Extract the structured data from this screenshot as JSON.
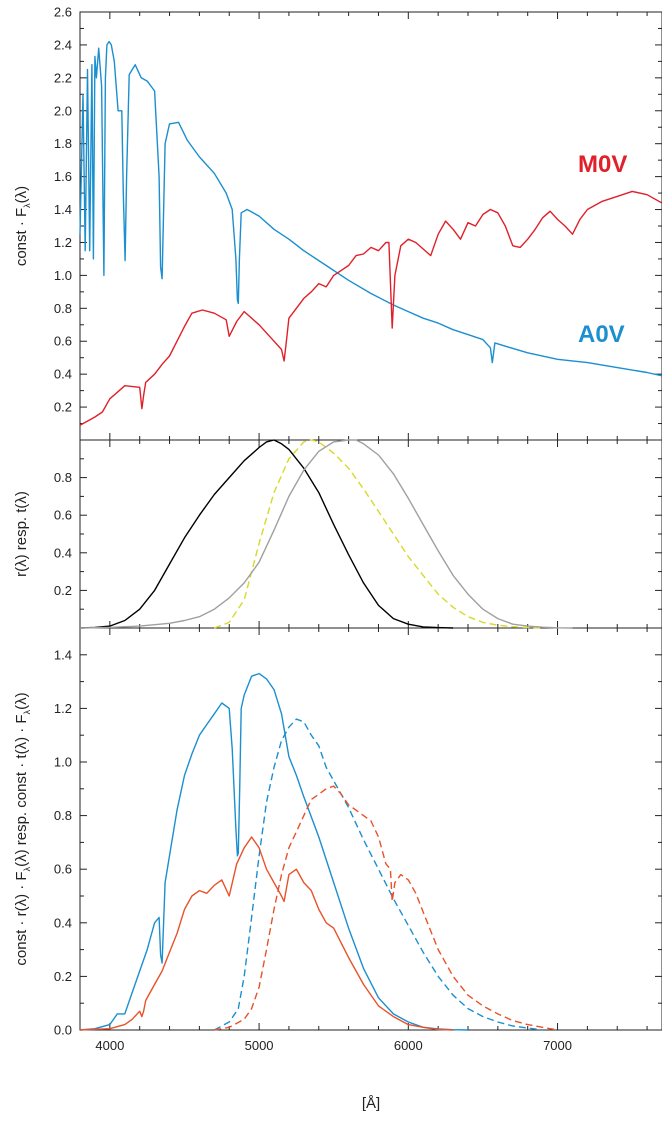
{
  "figure": {
    "xlabel": "[Å]",
    "x_ticks": [
      4000,
      5000,
      6000,
      7000
    ],
    "colors": {
      "a0v": "#1b8fcf",
      "m0v": "#e0202a",
      "m0v_product": "#e8522a",
      "response_black": "#000000",
      "response_yellow": "#d7d926",
      "response_grey": "#a0a0a0",
      "axes": "#222222"
    }
  },
  "chart_data": [
    {
      "type": "line",
      "panel": "top",
      "ylabel": "const · F_λ(λ)",
      "ylabel_prefix": "const · F",
      "ylabel_sub": "λ",
      "ylabel_suffix": "(λ)",
      "xlim": [
        3800,
        7700
      ],
      "ylim": [
        0,
        2.6
      ],
      "y_ticks": [
        0.2,
        0.4,
        0.6,
        0.8,
        1.0,
        1.2,
        1.4,
        1.6,
        1.8,
        2.0,
        2.2,
        2.4,
        2.6
      ],
      "series": [
        {
          "name": "A0V",
          "color": "#1b8fcf",
          "style": "solid",
          "x": [
            3800,
            3820,
            3835,
            3850,
            3865,
            3880,
            3890,
            3900,
            3910,
            3925,
            3945,
            3960,
            3970,
            3980,
            3995,
            4010,
            4030,
            4055,
            4080,
            4090,
            4102,
            4112,
            4130,
            4170,
            4210,
            4250,
            4300,
            4330,
            4340,
            4350,
            4370,
            4400,
            4460,
            4520,
            4600,
            4700,
            4780,
            4820,
            4845,
            4855,
            4861,
            4868,
            4880,
            4920,
            5000,
            5100,
            5200,
            5300,
            5450,
            5600,
            5750,
            5900,
            6000,
            6100,
            6200,
            6300,
            6400,
            6500,
            6550,
            6563,
            6580,
            6650,
            6800,
            7000,
            7200,
            7400,
            7600,
            7700
          ],
          "y": [
            1.25,
            2.1,
            1.15,
            2.25,
            1.15,
            2.28,
            1.1,
            2.33,
            2.2,
            2.38,
            2.15,
            1.0,
            2.2,
            2.4,
            2.42,
            2.4,
            2.3,
            2.0,
            2.0,
            1.5,
            1.09,
            1.6,
            2.22,
            2.28,
            2.2,
            2.18,
            2.12,
            1.6,
            1.05,
            0.98,
            1.8,
            1.92,
            1.93,
            1.82,
            1.72,
            1.62,
            1.5,
            1.4,
            1.1,
            0.85,
            0.83,
            1.1,
            1.38,
            1.4,
            1.36,
            1.28,
            1.22,
            1.15,
            1.06,
            0.97,
            0.89,
            0.82,
            0.78,
            0.74,
            0.71,
            0.67,
            0.64,
            0.61,
            0.56,
            0.47,
            0.59,
            0.57,
            0.53,
            0.49,
            0.47,
            0.44,
            0.41,
            0.39
          ]
        },
        {
          "name": "M0V",
          "color": "#e0202a",
          "style": "solid",
          "x": [
            3800,
            3900,
            3950,
            4000,
            4050,
            4100,
            4200,
            4215,
            4226,
            4240,
            4300,
            4350,
            4400,
            4450,
            4500,
            4550,
            4620,
            4700,
            4780,
            4800,
            4850,
            4900,
            5000,
            5100,
            5150,
            5168,
            5183,
            5200,
            5250,
            5300,
            5350,
            5400,
            5450,
            5500,
            5550,
            5600,
            5650,
            5700,
            5750,
            5800,
            5850,
            5870,
            5892,
            5910,
            5950,
            6000,
            6050,
            6100,
            6150,
            6200,
            6250,
            6300,
            6350,
            6400,
            6450,
            6500,
            6550,
            6600,
            6650,
            6700,
            6750,
            6800,
            6850,
            6900,
            6950,
            7000,
            7050,
            7100,
            7150,
            7200,
            7300,
            7400,
            7500,
            7600,
            7700
          ],
          "y": [
            0.09,
            0.14,
            0.17,
            0.25,
            0.29,
            0.33,
            0.32,
            0.19,
            0.27,
            0.35,
            0.4,
            0.46,
            0.51,
            0.6,
            0.69,
            0.77,
            0.79,
            0.77,
            0.73,
            0.63,
            0.72,
            0.78,
            0.7,
            0.6,
            0.55,
            0.48,
            0.6,
            0.74,
            0.8,
            0.86,
            0.9,
            0.95,
            0.93,
            1.0,
            1.03,
            1.06,
            1.12,
            1.13,
            1.17,
            1.15,
            1.2,
            1.2,
            0.68,
            1.0,
            1.18,
            1.22,
            1.2,
            1.16,
            1.12,
            1.25,
            1.33,
            1.28,
            1.22,
            1.32,
            1.3,
            1.37,
            1.4,
            1.38,
            1.3,
            1.18,
            1.17,
            1.22,
            1.28,
            1.35,
            1.39,
            1.34,
            1.3,
            1.25,
            1.34,
            1.4,
            1.45,
            1.48,
            1.51,
            1.49,
            1.44
          ]
        }
      ]
    },
    {
      "type": "line",
      "panel": "middle",
      "ylabel": "r(λ)  resp.  t(λ)",
      "xlim": [
        3800,
        7700
      ],
      "ylim": [
        0,
        1.0
      ],
      "y_ticks": [
        0.2,
        0.4,
        0.6,
        0.8
      ],
      "series": [
        {
          "color": "#000000",
          "style": "solid",
          "x": [
            3800,
            3900,
            4000,
            4100,
            4200,
            4300,
            4400,
            4500,
            4600,
            4700,
            4800,
            4900,
            5000,
            5050,
            5100,
            5150,
            5200,
            5300,
            5400,
            5500,
            5600,
            5700,
            5800,
            5900,
            6000,
            6100,
            6200,
            6300
          ],
          "y": [
            0,
            0.003,
            0.01,
            0.04,
            0.1,
            0.2,
            0.34,
            0.48,
            0.6,
            0.71,
            0.8,
            0.89,
            0.96,
            0.99,
            1.0,
            0.98,
            0.95,
            0.85,
            0.72,
            0.55,
            0.39,
            0.24,
            0.12,
            0.05,
            0.02,
            0.006,
            0.002,
            0
          ]
        },
        {
          "color": "#d7d926",
          "style": "dashed",
          "x": [
            4700,
            4800,
            4900,
            5000,
            5100,
            5200,
            5300,
            5350,
            5400,
            5500,
            5600,
            5700,
            5800,
            5900,
            6000,
            6100,
            6200,
            6300,
            6400,
            6500,
            6600,
            6700,
            6800,
            6900
          ],
          "y": [
            0,
            0.03,
            0.15,
            0.45,
            0.72,
            0.9,
            0.99,
            1.0,
            0.99,
            0.93,
            0.85,
            0.74,
            0.62,
            0.5,
            0.38,
            0.28,
            0.18,
            0.11,
            0.06,
            0.03,
            0.015,
            0.007,
            0.002,
            0
          ]
        },
        {
          "color": "#a0a0a0",
          "style": "solid",
          "x": [
            3800,
            4000,
            4200,
            4400,
            4500,
            4600,
            4700,
            4800,
            4900,
            5000,
            5100,
            5200,
            5300,
            5400,
            5500,
            5600,
            5650,
            5700,
            5800,
            5900,
            6000,
            6100,
            6200,
            6300,
            6400,
            6500,
            6600,
            6700,
            6800,
            6900,
            7000,
            7100
          ],
          "y": [
            0,
            0.003,
            0.01,
            0.025,
            0.04,
            0.06,
            0.1,
            0.16,
            0.24,
            0.35,
            0.52,
            0.7,
            0.84,
            0.94,
            0.99,
            1.0,
            1.0,
            0.98,
            0.92,
            0.82,
            0.69,
            0.55,
            0.41,
            0.28,
            0.18,
            0.1,
            0.05,
            0.02,
            0.01,
            0.004,
            0.001,
            0
          ]
        }
      ]
    },
    {
      "type": "line",
      "panel": "bottom",
      "ylabel": "const · r(λ) · F_λ(λ)  resp.  const · t(λ) · F_λ(λ)",
      "ylabel_parts": [
        "const · r(λ) · F",
        "λ",
        "(λ)  resp.  const · t(λ) · F",
        "λ",
        "(λ)"
      ],
      "xlim": [
        3800,
        7700
      ],
      "ylim": [
        0,
        1.5
      ],
      "y_ticks": [
        0.0,
        0.2,
        0.4,
        0.6,
        0.8,
        1.0,
        1.2,
        1.4
      ],
      "series": [
        {
          "color": "#1b8fcf",
          "style": "solid",
          "x": [
            3800,
            3900,
            4000,
            4050,
            4100,
            4150,
            4200,
            4250,
            4300,
            4330,
            4340,
            4350,
            4370,
            4400,
            4450,
            4500,
            4550,
            4600,
            4650,
            4700,
            4750,
            4800,
            4820,
            4845,
            4855,
            4861,
            4870,
            4880,
            4900,
            4950,
            5000,
            5050,
            5100,
            5150,
            5200,
            5250,
            5300,
            5400,
            5500,
            5600,
            5700,
            5800,
            5900,
            6000,
            6100,
            6200,
            6300,
            6400
          ],
          "y": [
            0,
            0.005,
            0.02,
            0.06,
            0.06,
            0.14,
            0.22,
            0.3,
            0.4,
            0.42,
            0.28,
            0.25,
            0.55,
            0.65,
            0.82,
            0.95,
            1.03,
            1.1,
            1.14,
            1.18,
            1.22,
            1.2,
            1.05,
            0.75,
            0.65,
            0.66,
            0.9,
            1.2,
            1.25,
            1.32,
            1.33,
            1.31,
            1.27,
            1.18,
            1.02,
            0.95,
            0.87,
            0.72,
            0.55,
            0.38,
            0.23,
            0.12,
            0.06,
            0.03,
            0.01,
            0.004,
            0.001,
            0
          ]
        },
        {
          "color": "#1b8fcf",
          "style": "dashed",
          "x": [
            4700,
            4800,
            4850,
            4861,
            4900,
            4950,
            5000,
            5050,
            5100,
            5150,
            5200,
            5250,
            5300,
            5350,
            5400,
            5450,
            5500,
            5600,
            5700,
            5800,
            5900,
            6000,
            6100,
            6200,
            6300,
            6400,
            6500,
            6600,
            6700,
            6800,
            6900
          ],
          "y": [
            0,
            0.03,
            0.07,
            0.08,
            0.2,
            0.42,
            0.65,
            0.85,
            0.98,
            1.08,
            1.13,
            1.16,
            1.15,
            1.1,
            1.06,
            0.98,
            0.93,
            0.83,
            0.71,
            0.6,
            0.49,
            0.39,
            0.29,
            0.2,
            0.13,
            0.08,
            0.05,
            0.03,
            0.015,
            0.007,
            0
          ]
        },
        {
          "color": "#e8522a",
          "style": "solid",
          "x": [
            3800,
            4000,
            4100,
            4150,
            4200,
            4215,
            4226,
            4240,
            4300,
            4350,
            4400,
            4450,
            4500,
            4550,
            4600,
            4650,
            4700,
            4750,
            4800,
            4850,
            4900,
            4950,
            5000,
            5050,
            5100,
            5150,
            5168,
            5200,
            5250,
            5300,
            5350,
            5400,
            5450,
            5500,
            5600,
            5700,
            5800,
            5900,
            6000,
            6100,
            6200,
            6300
          ],
          "y": [
            0,
            0.005,
            0.02,
            0.04,
            0.07,
            0.05,
            0.07,
            0.11,
            0.17,
            0.22,
            0.29,
            0.36,
            0.45,
            0.5,
            0.52,
            0.51,
            0.54,
            0.56,
            0.5,
            0.62,
            0.68,
            0.72,
            0.68,
            0.6,
            0.55,
            0.5,
            0.48,
            0.58,
            0.6,
            0.55,
            0.52,
            0.45,
            0.4,
            0.38,
            0.27,
            0.17,
            0.09,
            0.05,
            0.02,
            0.01,
            0.002,
            0
          ]
        },
        {
          "color": "#e8522a",
          "style": "dashed",
          "x": [
            4700,
            4800,
            4900,
            4950,
            5000,
            5050,
            5100,
            5150,
            5200,
            5250,
            5300,
            5350,
            5400,
            5450,
            5500,
            5550,
            5600,
            5650,
            5700,
            5750,
            5800,
            5850,
            5880,
            5892,
            5910,
            5950,
            6000,
            6050,
            6100,
            6200,
            6300,
            6400,
            6500,
            6600,
            6700,
            6800,
            6900,
            7000
          ],
          "y": [
            0,
            0.01,
            0.04,
            0.08,
            0.16,
            0.3,
            0.45,
            0.58,
            0.68,
            0.74,
            0.8,
            0.86,
            0.88,
            0.9,
            0.91,
            0.88,
            0.84,
            0.82,
            0.8,
            0.78,
            0.72,
            0.62,
            0.6,
            0.48,
            0.55,
            0.58,
            0.56,
            0.51,
            0.44,
            0.3,
            0.2,
            0.13,
            0.09,
            0.06,
            0.035,
            0.02,
            0.01,
            0
          ]
        }
      ]
    }
  ],
  "annotations": {
    "m0v_label": "M0V",
    "a0v_label": "A0V"
  }
}
